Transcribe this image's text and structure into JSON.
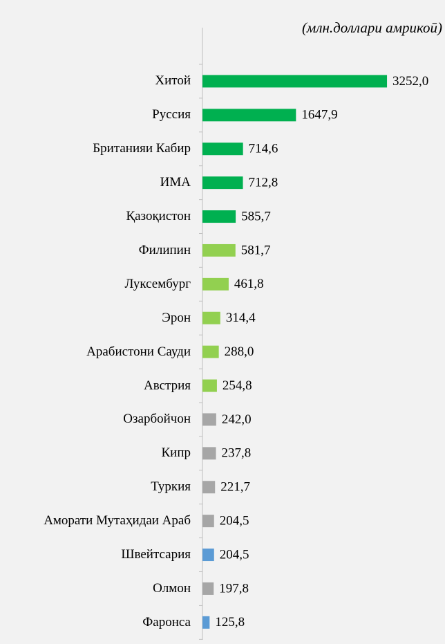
{
  "chart_data": {
    "type": "bar",
    "orientation": "horizontal",
    "subtitle": "(млн.доллари амрикоӣ)",
    "categories": [
      "Хитой",
      "Руссия",
      "Британияи Кабир",
      "ИМА",
      "Қазоқистон",
      "Филипин",
      "Луксембург",
      "Эрон",
      "Арабистони Сауди",
      "Австрия",
      "Озарбойчон",
      "Кипр",
      "Туркия",
      "Аморати Мутаҳидаи Араб",
      "Швейтсария",
      "Олмон",
      "Фаронса"
    ],
    "values": [
      3252.0,
      1647.9,
      714.6,
      712.8,
      585.7,
      581.7,
      461.8,
      314.4,
      288.0,
      254.8,
      242.0,
      237.8,
      221.7,
      204.5,
      204.5,
      197.8,
      125.8
    ],
    "value_labels": [
      "3252,0",
      "1647,9",
      "714,6",
      "712,8",
      "585,7",
      "581,7",
      "461,8",
      "314,4",
      "288,0",
      "254,8",
      "242,0",
      "237,8",
      "221,7",
      "204,5",
      "204,5",
      "197,8",
      "125,8"
    ],
    "colors": [
      "#00b050",
      "#00b050",
      "#00b050",
      "#00b050",
      "#00b050",
      "#92d050",
      "#92d050",
      "#92d050",
      "#92d050",
      "#92d050",
      "#a6a6a6",
      "#a6a6a6",
      "#a6a6a6",
      "#a6a6a6",
      "#5b9bd5",
      "#a6a6a6",
      "#5b9bd5"
    ],
    "xlim": [
      0,
      3300
    ]
  }
}
